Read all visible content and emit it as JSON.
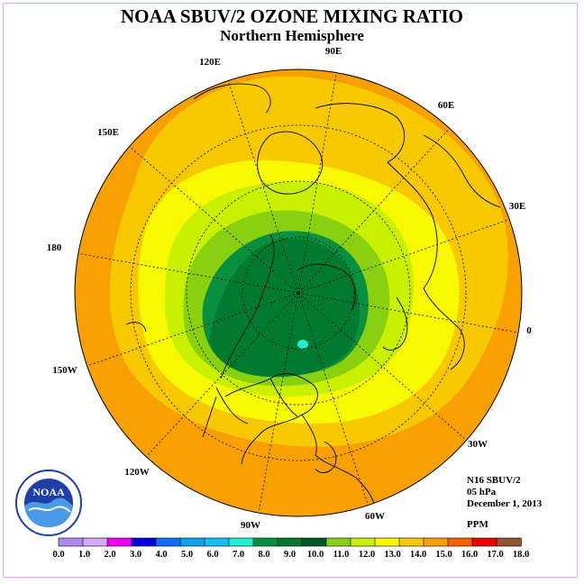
{
  "title": "NOAA SBUV/2 OZONE MIXING RATIO",
  "subtitle": "Northern Hemisphere",
  "longitude_labels": [
    "90E",
    "60E",
    "30E",
    "0",
    "30W",
    "60W",
    "90W",
    "120W",
    "150W",
    "180",
    "150E",
    "120E"
  ],
  "info": {
    "satellite": "N16 SBUV/2",
    "pressure": "05 hPa",
    "date": "December 1, 2013",
    "units": "PPM"
  },
  "colorbar": {
    "ticks": [
      "0.0",
      "1.0",
      "2.0",
      "3.0",
      "4.0",
      "5.0",
      "6.0",
      "7.0",
      "8.0",
      "9.0",
      "10.0",
      "11.0",
      "12.0",
      "13.0",
      "14.0",
      "15.0",
      "16.0",
      "17.0",
      "18.0"
    ],
    "colors": [
      "#b088f0",
      "#d8a8f8",
      "#f000f0",
      "#0000e0",
      "#1070f0",
      "#10a0f0",
      "#10c0f0",
      "#20f0d0",
      "#089040",
      "#007a30",
      "#005820",
      "#88d010",
      "#c8f000",
      "#f8f800",
      "#f8c800",
      "#f8a000",
      "#f86000",
      "#f00000",
      "#905830"
    ]
  },
  "logo_text": "NOAA"
}
